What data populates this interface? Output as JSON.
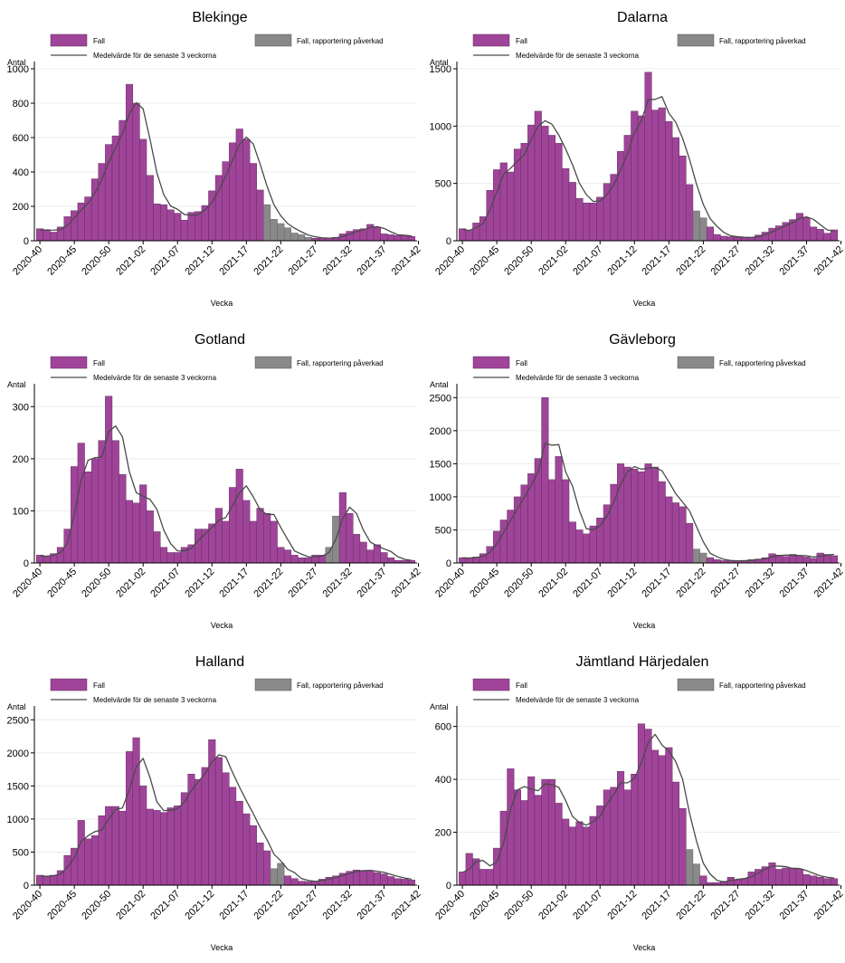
{
  "legend": {
    "fall": "Fall",
    "affected": "Fall, rapportering påverkad",
    "mean": "Medelvärde för de senaste 3 veckorna"
  },
  "colors": {
    "fall": "#a0449a",
    "affected": "#898989",
    "mean": "#4a4a4a",
    "grid": "#ececec"
  },
  "chart_data": [
    {
      "type": "bar",
      "title": "Blekinge",
      "xlabel": "Vecka",
      "ylabel": "Antal",
      "ylim": [
        0,
        1000
      ],
      "yticks": [
        0,
        200,
        400,
        600,
        800,
        1000
      ],
      "xticks": [
        "2020-40",
        "2020-45",
        "2020-50",
        "2021-02",
        "2021-07",
        "2021-12",
        "2021-17",
        "2021-22",
        "2021-27",
        "2021-32",
        "2021-37",
        "2021-42"
      ],
      "weeks_from": "2020-40",
      "weeks_to": "2021-42",
      "values": [
        70,
        65,
        50,
        80,
        140,
        175,
        220,
        255,
        360,
        450,
        560,
        610,
        700,
        910,
        800,
        590,
        380,
        215,
        210,
        180,
        160,
        120,
        165,
        170,
        205,
        290,
        380,
        460,
        570,
        650,
        590,
        450,
        295,
        210,
        125,
        100,
        75,
        45,
        35,
        20,
        15,
        15,
        15,
        20,
        40,
        55,
        65,
        70,
        95,
        80,
        40,
        35,
        30,
        30,
        25
      ],
      "affected_range": [
        33,
        39
      ],
      "mean": [
        62,
        61,
        62,
        65,
        90,
        132,
        178,
        217,
        278,
        355,
        457,
        540,
        623,
        740,
        803,
        767,
        590,
        395,
        268,
        202,
        183,
        153,
        148,
        152,
        180,
        222,
        292,
        377,
        470,
        560,
        603,
        563,
        445,
        318,
        210,
        145,
        100,
        73,
        52,
        33,
        23,
        17,
        15,
        17,
        25,
        38,
        53,
        63,
        77,
        82,
        72,
        52,
        35,
        32,
        28
      ]
    },
    {
      "type": "bar",
      "title": "Dalarna",
      "xlabel": "Vecka",
      "ylabel": "Antal",
      "ylim": [
        0,
        1500
      ],
      "yticks": [
        0,
        500,
        1000,
        1500
      ],
      "xticks": [
        "2020-40",
        "2020-45",
        "2020-50",
        "2021-02",
        "2021-07",
        "2021-12",
        "2021-17",
        "2021-22",
        "2021-27",
        "2021-32",
        "2021-37",
        "2021-42"
      ],
      "weeks_from": "2020-40",
      "weeks_to": "2021-42",
      "values": [
        105,
        90,
        155,
        210,
        440,
        620,
        680,
        600,
        800,
        850,
        1010,
        1130,
        1000,
        920,
        850,
        630,
        510,
        370,
        330,
        330,
        380,
        500,
        580,
        780,
        920,
        1130,
        1090,
        1470,
        1140,
        1160,
        1040,
        900,
        740,
        490,
        260,
        200,
        120,
        55,
        40,
        35,
        30,
        25,
        30,
        50,
        75,
        110,
        130,
        160,
        185,
        240,
        200,
        120,
        100,
        65,
        95
      ],
      "affected_range": [
        34,
        35
      ],
      "mean": [
        100,
        90,
        115,
        150,
        268,
        423,
        580,
        633,
        693,
        750,
        887,
        997,
        1047,
        1017,
        923,
        800,
        663,
        503,
        403,
        343,
        347,
        403,
        487,
        620,
        760,
        943,
        1047,
        1230,
        1233,
        1257,
        1113,
        1033,
        893,
        710,
        497,
        317,
        193,
        125,
        72,
        43,
        35,
        30,
        28,
        35,
        52,
        78,
        105,
        133,
        158,
        195,
        208,
        187,
        140,
        95,
        85
      ]
    },
    {
      "type": "bar",
      "title": "Gotland",
      "xlabel": "Vecka",
      "ylabel": "Antal",
      "ylim": [
        0,
        330
      ],
      "yticks": [
        0,
        100,
        200,
        300
      ],
      "xticks": [
        "2020-40",
        "2020-45",
        "2020-50",
        "2021-02",
        "2021-07",
        "2021-12",
        "2021-17",
        "2021-22",
        "2021-27",
        "2021-32",
        "2021-37",
        "2021-42"
      ],
      "weeks_from": "2020-40",
      "weeks_to": "2021-42",
      "values": [
        15,
        12,
        18,
        30,
        65,
        185,
        230,
        175,
        200,
        235,
        320,
        235,
        170,
        120,
        115,
        150,
        100,
        60,
        30,
        20,
        20,
        30,
        35,
        65,
        65,
        75,
        105,
        80,
        145,
        180,
        120,
        80,
        105,
        95,
        80,
        30,
        25,
        15,
        10,
        10,
        15,
        15,
        30,
        90,
        135,
        95,
        55,
        40,
        25,
        35,
        20,
        10,
        5,
        5,
        5
      ],
      "affected_range": [
        42,
        43
      ],
      "mean": [
        14,
        13,
        15,
        20,
        38,
        93,
        160,
        197,
        202,
        203,
        252,
        263,
        242,
        175,
        135,
        128,
        122,
        103,
        63,
        37,
        23,
        23,
        28,
        43,
        55,
        68,
        82,
        87,
        110,
        135,
        148,
        127,
        102,
        93,
        93,
        68,
        45,
        23,
        17,
        12,
        12,
        13,
        20,
        45,
        85,
        107,
        95,
        63,
        40,
        33,
        27,
        22,
        12,
        7,
        5
      ]
    },
    {
      "type": "bar",
      "title": "Gävleborg",
      "xlabel": "Vecka",
      "ylabel": "Antal",
      "ylim": [
        0,
        2600
      ],
      "yticks": [
        0,
        500,
        1000,
        1500,
        2000,
        2500
      ],
      "xticks": [
        "2020-40",
        "2020-45",
        "2020-50",
        "2021-02",
        "2021-07",
        "2021-12",
        "2021-17",
        "2021-22",
        "2021-27",
        "2021-32",
        "2021-37",
        "2021-42"
      ],
      "weeks_from": "2020-40",
      "weeks_to": "2021-42",
      "values": [
        80,
        70,
        90,
        140,
        250,
        480,
        650,
        800,
        1000,
        1180,
        1350,
        1580,
        2500,
        1260,
        1610,
        1260,
        620,
        500,
        440,
        560,
        680,
        880,
        1190,
        1500,
        1450,
        1420,
        1380,
        1500,
        1450,
        1230,
        1000,
        910,
        850,
        600,
        210,
        150,
        80,
        50,
        35,
        30,
        30,
        40,
        50,
        60,
        80,
        140,
        120,
        100,
        130,
        110,
        90,
        70,
        150,
        130,
        110
      ],
      "affected_range": [
        34,
        35
      ],
      "mean": [
        78,
        75,
        80,
        100,
        160,
        290,
        460,
        643,
        817,
        993,
        1177,
        1370,
        1810,
        1780,
        1790,
        1377,
        1163,
        793,
        520,
        500,
        560,
        707,
        917,
        1190,
        1380,
        1457,
        1417,
        1433,
        1443,
        1393,
        1227,
        1047,
        920,
        787,
        553,
        320,
        147,
        93,
        55,
        38,
        32,
        33,
        40,
        50,
        63,
        93,
        113,
        120,
        117,
        113,
        110,
        90,
        103,
        117,
        130
      ]
    },
    {
      "type": "bar",
      "title": "Halland",
      "xlabel": "Vecka",
      "ylabel": "Antal",
      "ylim": [
        0,
        2600
      ],
      "yticks": [
        0,
        500,
        1000,
        1500,
        2000,
        2500
      ],
      "xticks": [
        "2020-40",
        "2020-45",
        "2020-50",
        "2021-02",
        "2021-07",
        "2021-12",
        "2021-17",
        "2021-22",
        "2021-27",
        "2021-32",
        "2021-37",
        "2021-42"
      ],
      "weeks_from": "2020-40",
      "weeks_to": "2021-42",
      "values": [
        150,
        130,
        150,
        220,
        450,
        560,
        980,
        700,
        750,
        1050,
        1190,
        1190,
        1120,
        2020,
        2230,
        1500,
        1150,
        1130,
        1100,
        1170,
        1200,
        1400,
        1680,
        1600,
        1780,
        2200,
        1930,
        1700,
        1480,
        1270,
        1080,
        900,
        640,
        520,
        250,
        330,
        140,
        100,
        60,
        55,
        60,
        90,
        120,
        140,
        180,
        210,
        230,
        220,
        220,
        190,
        170,
        130,
        100,
        90,
        80
      ],
      "affected_range": [
        34,
        35
      ],
      "mean": [
        140,
        135,
        143,
        167,
        273,
        410,
        663,
        747,
        810,
        833,
        997,
        1143,
        1167,
        1443,
        1790,
        1917,
        1627,
        1260,
        1127,
        1133,
        1157,
        1257,
        1427,
        1560,
        1687,
        1860,
        1970,
        1943,
        1703,
        1483,
        1277,
        1083,
        873,
        687,
        470,
        367,
        240,
        190,
        100,
        72,
        58,
        68,
        90,
        117,
        147,
        177,
        207,
        220,
        223,
        210,
        193,
        163,
        133,
        107,
        90
      ]
    },
    {
      "type": "bar",
      "title": "Jämtland Härjedalen",
      "xlabel": "Vecka",
      "ylabel": "Antal",
      "ylim": [
        0,
        650
      ],
      "yticks": [
        0,
        200,
        400,
        600
      ],
      "xticks": [
        "2020-40",
        "2020-45",
        "2020-50",
        "2021-02",
        "2021-07",
        "2021-12",
        "2021-17",
        "2021-22",
        "2021-27",
        "2021-32",
        "2021-37",
        "2021-42"
      ],
      "weeks_from": "2020-40",
      "weeks_to": "2021-42",
      "values": [
        50,
        120,
        100,
        60,
        60,
        140,
        280,
        440,
        360,
        320,
        410,
        340,
        400,
        400,
        310,
        250,
        220,
        240,
        220,
        260,
        300,
        360,
        370,
        430,
        360,
        420,
        610,
        590,
        510,
        490,
        520,
        390,
        290,
        135,
        80,
        35,
        10,
        10,
        15,
        30,
        20,
        25,
        50,
        60,
        70,
        85,
        60,
        65,
        65,
        60,
        40,
        35,
        30,
        25,
        25
      ],
      "affected_range": [
        33,
        34
      ],
      "mean": [
        48,
        60,
        90,
        93,
        73,
        87,
        160,
        287,
        360,
        373,
        363,
        357,
        383,
        380,
        370,
        320,
        260,
        237,
        227,
        240,
        260,
        307,
        343,
        387,
        387,
        403,
        463,
        540,
        570,
        530,
        507,
        467,
        400,
        272,
        168,
        83,
        42,
        18,
        12,
        18,
        22,
        25,
        32,
        45,
        60,
        72,
        72,
        70,
        63,
        63,
        55,
        45,
        35,
        30,
        27
      ]
    }
  ]
}
